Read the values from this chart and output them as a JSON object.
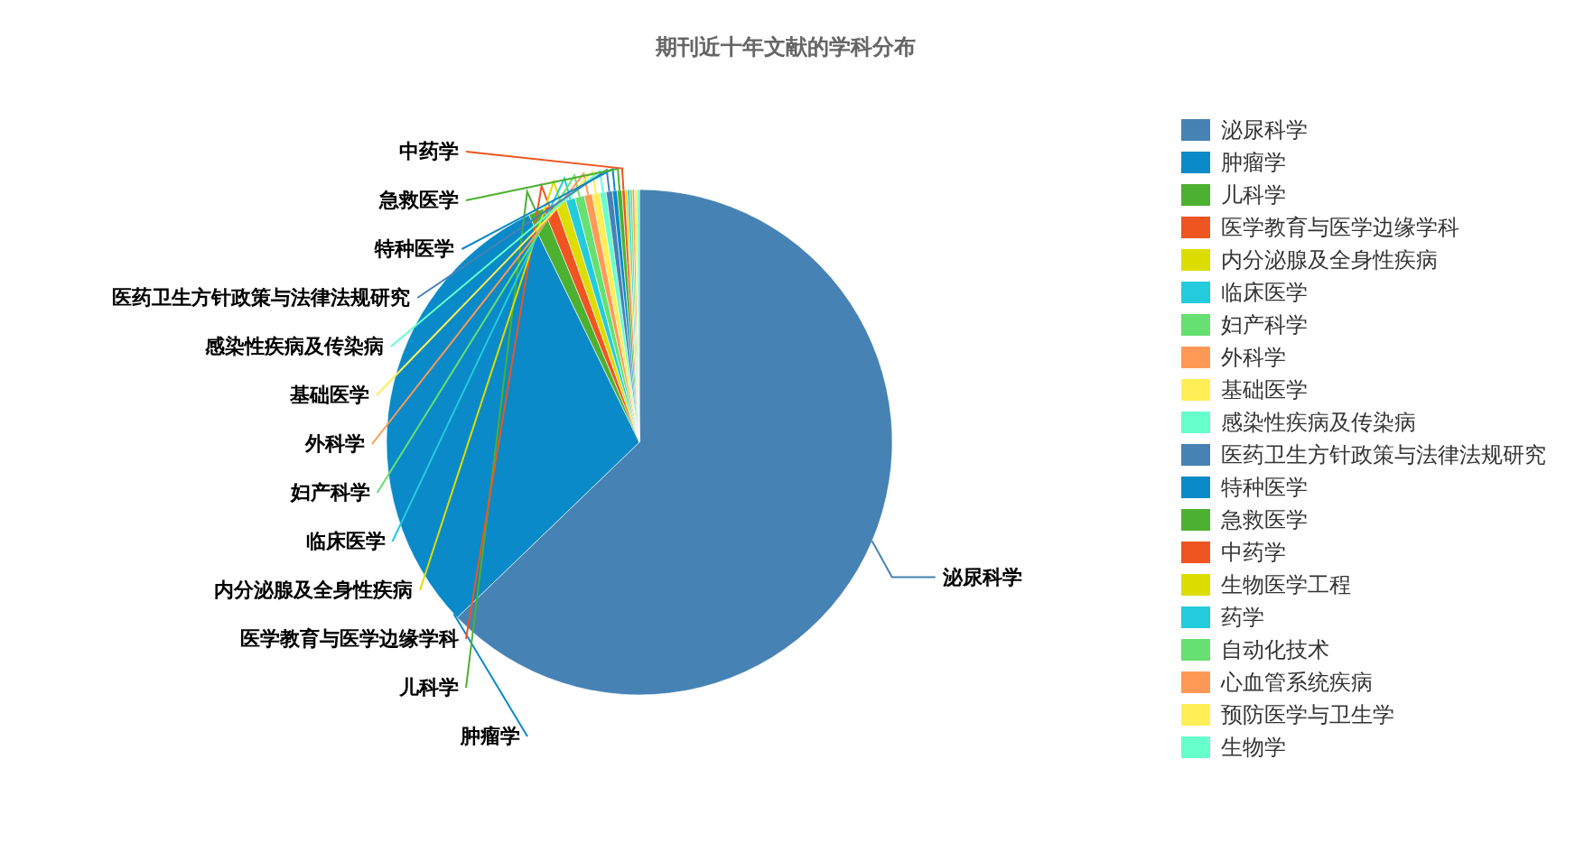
{
  "chart_data": {
    "type": "pie",
    "title": "期刊近十年文献的学科分布",
    "legend": "right",
    "categories": [
      "泌尿科学",
      "肿瘤学",
      "儿科学",
      "医学教育与医学边缘学科",
      "内分泌腺及全身性疾病",
      "临床医学",
      "妇产科学",
      "外科学",
      "基础医学",
      "感染性疾病及传染病",
      "医药卫生方针政策与法律法规研究",
      "特种医学",
      "急救医学",
      "中药学",
      "生物医学工程",
      "药学",
      "自动化技术",
      "心血管系统疾病",
      "预防医学与卫生学",
      "生物学"
    ],
    "values": [
      62.8,
      30,
      1,
      0.8,
      0.7,
      0.6,
      0.6,
      0.5,
      0.5,
      0.4,
      0.4,
      0.3,
      0.3,
      0.2,
      0.15,
      0.15,
      0.15,
      0.15,
      0.15,
      0.15
    ],
    "colors": [
      "#4682b4",
      "#0a8ac8",
      "#4cb030",
      "#ee5520",
      "#dddd00",
      "#22ccdd",
      "#66e070",
      "#ff9955",
      "#ffee55",
      "#66ffcc",
      "#4682b4",
      "#0a8ac8",
      "#4cb030",
      "#ee5520",
      "#dddd00",
      "#22ccdd",
      "#66e070",
      "#ff9955",
      "#ffee55",
      "#66ffcc"
    ]
  }
}
